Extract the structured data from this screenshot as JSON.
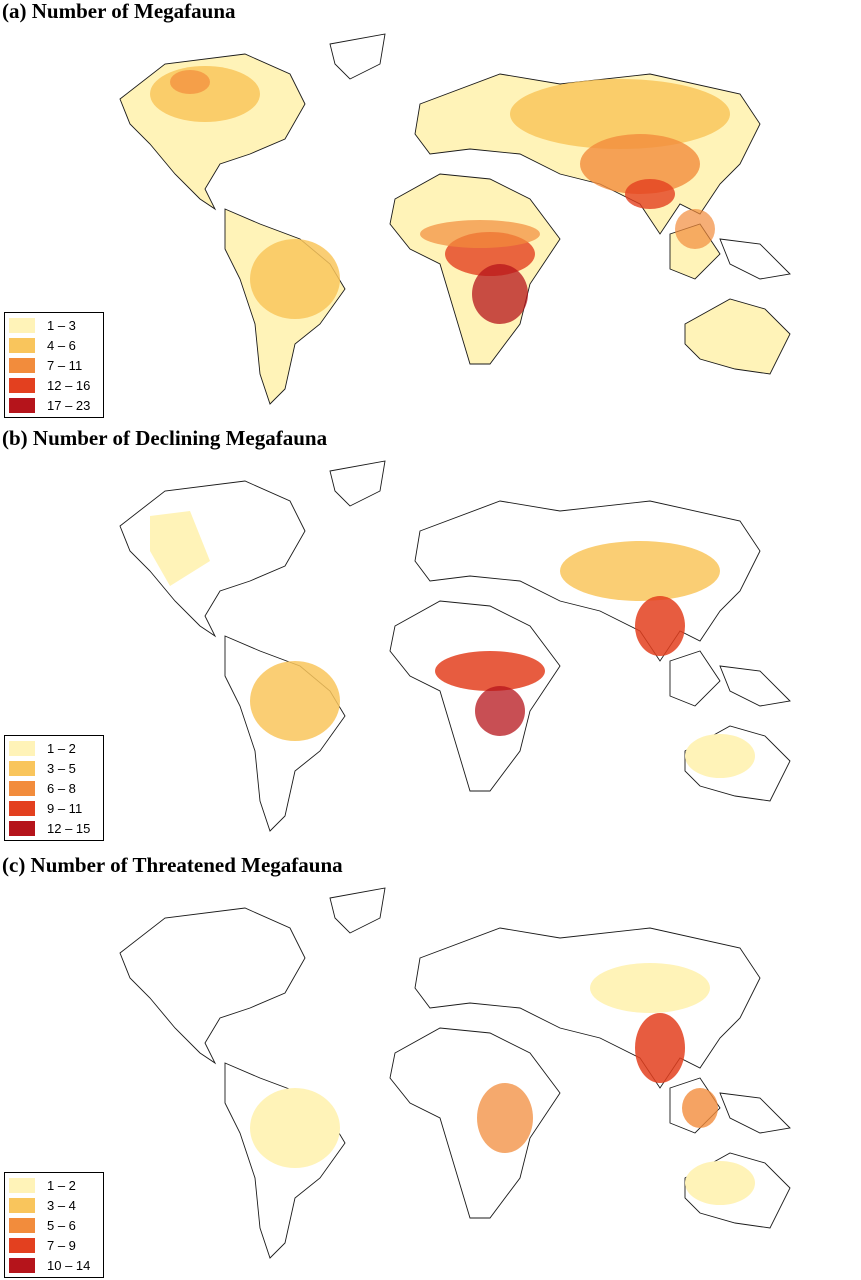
{
  "panels": [
    {
      "title": "(a) Number of Megafauna",
      "legend": [
        {
          "label": "1 – 3",
          "color": "#fff3b8"
        },
        {
          "label": "4 – 6",
          "color": "#f9c55c"
        },
        {
          "label": "7 – 11",
          "color": "#f28c3c"
        },
        {
          "label": "12 – 16",
          "color": "#e3401f"
        },
        {
          "label": "17 – 23",
          "color": "#b5141b"
        }
      ]
    },
    {
      "title": "(b) Number of Declining Megafauna",
      "legend": [
        {
          "label": "1 – 2",
          "color": "#fff3b8"
        },
        {
          "label": "3 – 5",
          "color": "#f9c55c"
        },
        {
          "label": "6 – 8",
          "color": "#f28c3c"
        },
        {
          "label": "9 – 11",
          "color": "#e3401f"
        },
        {
          "label": "12 – 15",
          "color": "#b5141b"
        }
      ]
    },
    {
      "title": "(c) Number of Threatened Megafauna",
      "legend": [
        {
          "label": "1 – 2",
          "color": "#fff3b8"
        },
        {
          "label": "3 – 4",
          "color": "#f9c55c"
        },
        {
          "label": "5 – 6",
          "color": "#f28c3c"
        },
        {
          "label": "7 – 9",
          "color": "#e3401f"
        },
        {
          "label": "10 – 14",
          "color": "#b5141b"
        }
      ]
    }
  ]
}
